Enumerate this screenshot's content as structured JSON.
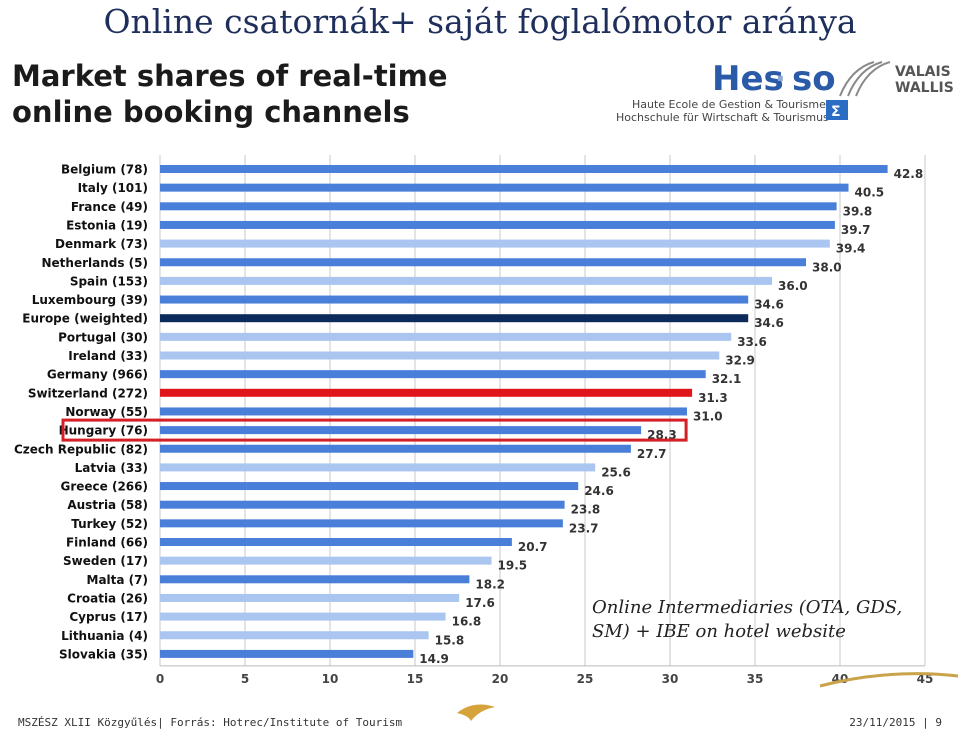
{
  "slide": {
    "title": "Online csatornák+ saját foglalómotor aránya"
  },
  "chart_heading": {
    "line1": "Market shares of real-time",
    "line2": "online booking channels"
  },
  "logo": {
    "brand_main": "Hes",
    "brand_sep": "·",
    "brand_end": "so",
    "region_line1": "VALAIS",
    "region_line2": "WALLIS",
    "school_line1": "Haute Ecole de Gestion & Tourisme",
    "school_line2": "Hochschule für Wirtschaft & Tourismus",
    "badge": "Σ"
  },
  "annotation": {
    "line1": "Online Intermediaries (OTA, GDS,",
    "line2": "SM) + IBE on hotel website"
  },
  "footer": {
    "left": "MSZÉSZ XLII Közgyűlés| Forrás: Hotrec/Institute of Tourism",
    "right": "23/11/2015  |   9"
  },
  "colors": {
    "bar_normal": "#4a7fd9",
    "bar_light": "#aac6f0",
    "bar_europe": "#0d2a5c",
    "bar_switzerland": "#e0161b",
    "highlight_box": "#d41f26",
    "title": "#1f2f5c"
  },
  "chart_data": {
    "type": "bar",
    "orientation": "horizontal",
    "title": "Market shares of real-time online booking channels",
    "categories": [
      "Belgium (78)",
      "Italy (101)",
      "France (49)",
      "Estonia (19)",
      "Denmark (73)",
      "Netherlands (5)",
      "Spain (153)",
      "Luxembourg (39)",
      "Europe (weighted)",
      "Portugal (30)",
      "Ireland (33)",
      "Germany (966)",
      "Switzerland (272)",
      "Norway (55)",
      "Hungary (76)",
      "Czech Republic (82)",
      "Latvia (33)",
      "Greece (266)",
      "Austria (58)",
      "Turkey (52)",
      "Finland (66)",
      "Sweden (17)",
      "Malta (7)",
      "Croatia (26)",
      "Cyprus (17)",
      "Lithuania (4)",
      "Slovakia (35)"
    ],
    "values": [
      42.8,
      40.5,
      39.8,
      39.7,
      39.4,
      38.0,
      36.0,
      34.6,
      34.6,
      33.6,
      32.9,
      32.1,
      31.3,
      31.0,
      28.3,
      27.7,
      25.6,
      24.6,
      23.8,
      23.7,
      20.7,
      19.5,
      18.2,
      17.6,
      16.8,
      15.8,
      14.9
    ],
    "value_labels": [
      "42.8",
      "40.5",
      "39.8",
      "39.7",
      "39.4",
      "38.0",
      "36.0",
      "34.6",
      "34.6",
      "33.6",
      "32.9",
      "32.1",
      "31.3",
      "31.0",
      "28.3",
      "27.7",
      "25.6",
      "24.6",
      "23.8",
      "23.7",
      "20.7",
      "19.5",
      "18.2",
      "17.6",
      "16.8",
      "15.8",
      "14.9"
    ],
    "bar_shades": [
      "normal",
      "normal",
      "normal",
      "normal",
      "light",
      "normal",
      "light",
      "normal",
      "europe",
      "light",
      "light",
      "normal",
      "switzerland",
      "normal",
      "normal",
      "normal",
      "light",
      "normal",
      "normal",
      "normal",
      "normal",
      "light",
      "normal",
      "light",
      "light",
      "light",
      "normal"
    ],
    "highlighted_category": "Hungary (76)",
    "xticks": [
      "0",
      "5",
      "10",
      "15",
      "20",
      "25",
      "30",
      "35",
      "40",
      "45"
    ],
    "xlim": [
      0,
      45
    ],
    "grid": true
  }
}
